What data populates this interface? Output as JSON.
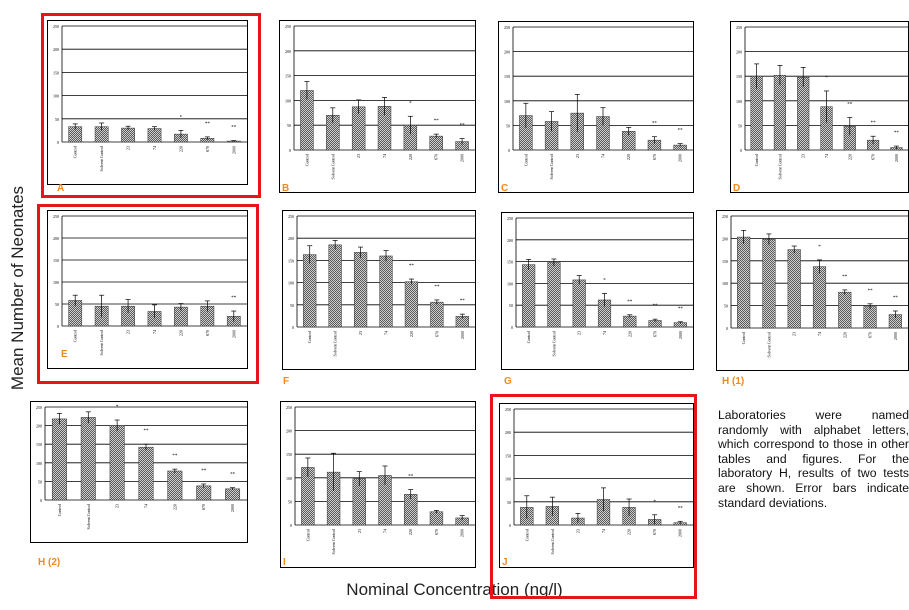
{
  "figure": {
    "y_axis_label": "Mean Number of Neonates",
    "x_axis_label": "Nominal Concentration (ng/l)",
    "note": "Laboratories were named randomly with alphabet letters, which correspond to those in other tables and figures. For the laboratory H, results of two tests are shown. Error bars indicate standard deviations.",
    "highlighted_panels": [
      "A",
      "E",
      "J"
    ],
    "colors": {
      "highlight": "#e8141b",
      "panel_label": "#f08a1f",
      "bar_fill": "#9a9a9a",
      "grid": "#000000"
    }
  },
  "chart_data": [
    {
      "label": "A",
      "type": "bar",
      "ylim": [
        0,
        250
      ],
      "yticks": [
        0,
        50,
        100,
        150,
        200,
        250
      ],
      "categories": [
        "Control",
        "Solvent Control",
        "23",
        "74",
        "220",
        "670",
        "2000"
      ],
      "values": [
        33,
        33,
        30,
        29,
        17,
        8,
        2
      ],
      "errors": [
        6,
        8,
        4,
        4,
        8,
        3,
        1
      ],
      "significance": [
        "",
        "",
        "",
        "",
        "*",
        "**",
        "**"
      ]
    },
    {
      "label": "B",
      "type": "bar",
      "ylim": [
        0,
        250
      ],
      "yticks": [
        0,
        50,
        100,
        150,
        200,
        250
      ],
      "categories": [
        "Control",
        "Solvent Control",
        "23",
        "74",
        "220",
        "670",
        "2000"
      ],
      "values": [
        120,
        70,
        87,
        88,
        50,
        28,
        17
      ],
      "errors": [
        18,
        15,
        14,
        18,
        18,
        4,
        6
      ],
      "significance": [
        "",
        "",
        "",
        "",
        "*",
        "**",
        "**"
      ]
    },
    {
      "label": "C",
      "type": "bar",
      "ylim": [
        0,
        250
      ],
      "yticks": [
        0,
        50,
        100,
        150,
        200,
        250
      ],
      "categories": [
        "Control",
        "Solvent Control",
        "23",
        "74",
        "220",
        "670",
        "2000"
      ],
      "values": [
        70,
        58,
        75,
        68,
        38,
        20,
        10
      ],
      "errors": [
        25,
        20,
        38,
        18,
        8,
        7,
        3
      ],
      "significance": [
        "",
        "",
        "",
        "",
        "",
        "**",
        "**"
      ]
    },
    {
      "label": "D",
      "type": "bar",
      "ylim": [
        0,
        250
      ],
      "yticks": [
        0,
        50,
        100,
        150,
        200,
        250
      ],
      "categories": [
        "Control",
        "Solvent Control",
        "23",
        "74",
        "220",
        "670",
        "2000"
      ],
      "values": [
        150,
        152,
        148,
        88,
        48,
        20,
        5
      ],
      "errors": [
        25,
        20,
        20,
        32,
        18,
        8,
        3
      ],
      "significance": [
        "",
        "",
        "",
        "*",
        "**",
        "**",
        "**"
      ]
    },
    {
      "label": "E",
      "type": "bar",
      "ylim": [
        0,
        250
      ],
      "yticks": [
        0,
        50,
        100,
        150,
        200,
        250
      ],
      "categories": [
        "Control",
        "Solvent Control",
        "23",
        "74",
        "220",
        "670",
        "2000"
      ],
      "values": [
        58,
        45,
        45,
        33,
        43,
        45,
        22
      ],
      "errors": [
        12,
        25,
        15,
        15,
        8,
        12,
        12
      ],
      "significance": [
        "",
        "",
        "",
        "",
        "",
        "",
        "**"
      ]
    },
    {
      "label": "F",
      "type": "bar",
      "ylim": [
        0,
        250
      ],
      "yticks": [
        0,
        50,
        100,
        150,
        200,
        250
      ],
      "categories": [
        "Control",
        "Solvent Control",
        "23",
        "74",
        "220",
        "670",
        "2000"
      ],
      "values": [
        163,
        185,
        168,
        160,
        102,
        56,
        24
      ],
      "errors": [
        20,
        10,
        12,
        12,
        6,
        5,
        5
      ],
      "significance": [
        "",
        "",
        "",
        "",
        "**",
        "**",
        "**"
      ]
    },
    {
      "label": "G",
      "type": "bar",
      "ylim": [
        0,
        250
      ],
      "yticks": [
        0,
        50,
        100,
        150,
        200,
        250
      ],
      "categories": [
        "Control",
        "Solvent Control",
        "23",
        "74",
        "220",
        "670",
        "2000"
      ],
      "values": [
        143,
        148,
        108,
        62,
        25,
        15,
        10
      ],
      "errors": [
        12,
        8,
        10,
        15,
        3,
        3,
        2
      ],
      "significance": [
        "",
        "",
        "",
        "*",
        "**",
        "**",
        "**"
      ]
    },
    {
      "label": "H (1)",
      "type": "bar",
      "ylim": [
        0,
        250
      ],
      "yticks": [
        0,
        50,
        100,
        150,
        200,
        250
      ],
      "categories": [
        "Control",
        "Solvent Control",
        "23",
        "74",
        "220",
        "670",
        "2000"
      ],
      "values": [
        203,
        198,
        175,
        137,
        80,
        48,
        30
      ],
      "errors": [
        15,
        12,
        8,
        15,
        5,
        6,
        8
      ],
      "significance": [
        "",
        "",
        "",
        "*",
        "**",
        "**",
        "**"
      ]
    },
    {
      "label": "H (2)",
      "type": "bar",
      "ylim": [
        0,
        250
      ],
      "yticks": [
        0,
        50,
        100,
        150,
        200,
        250
      ],
      "categories": [
        "Control",
        "Solvent Control",
        "23",
        "74",
        "220",
        "670",
        "2000"
      ],
      "values": [
        218,
        222,
        200,
        142,
        78,
        38,
        30
      ],
      "errors": [
        15,
        15,
        15,
        8,
        5,
        5,
        3
      ],
      "significance": [
        "",
        "",
        "*",
        "**",
        "**",
        "**",
        "**"
      ]
    },
    {
      "label": "I",
      "type": "bar",
      "ylim": [
        0,
        250
      ],
      "yticks": [
        0,
        50,
        100,
        150,
        200,
        250
      ],
      "categories": [
        "Control",
        "Solvent Control",
        "23",
        "74",
        "220",
        "670",
        "2000"
      ],
      "values": [
        122,
        112,
        98,
        105,
        65,
        28,
        15
      ],
      "errors": [
        20,
        40,
        15,
        20,
        10,
        3,
        5
      ],
      "significance": [
        "",
        "",
        "",
        "",
        "**",
        "",
        ""
      ]
    },
    {
      "label": "J",
      "type": "bar",
      "ylim": [
        0,
        250
      ],
      "yticks": [
        0,
        50,
        100,
        150,
        200,
        250
      ],
      "categories": [
        "Control",
        "Solvent Control",
        "23",
        "74",
        "220",
        "670",
        "2000"
      ],
      "values": [
        38,
        40,
        15,
        55,
        38,
        12,
        5
      ],
      "errors": [
        25,
        20,
        10,
        25,
        18,
        10,
        3
      ],
      "significance": [
        "",
        "",
        "",
        "",
        "",
        "*",
        "**"
      ]
    }
  ]
}
